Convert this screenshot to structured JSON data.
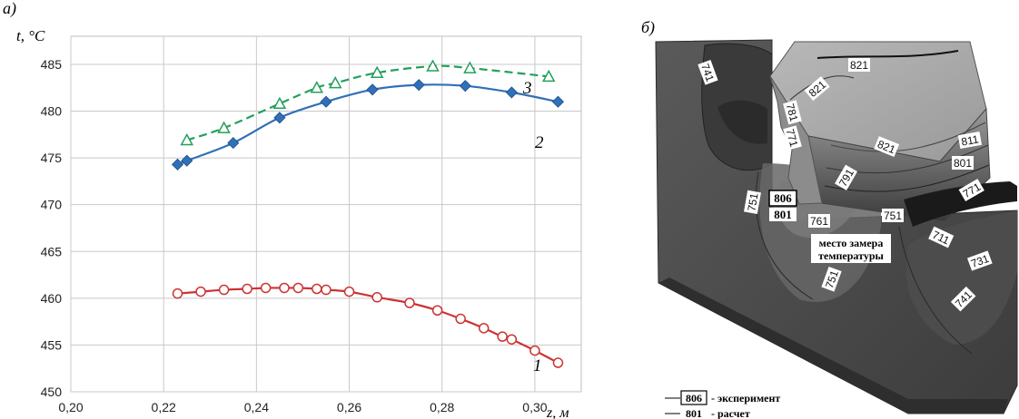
{
  "panel_a": {
    "label": "а)"
  },
  "panel_b": {
    "label": "б)"
  },
  "chart_data": {
    "type": "line",
    "title": "",
    "ylabel": "t, °C",
    "xlabel": "z, м",
    "xlim": [
      0.2,
      0.31
    ],
    "ylim": [
      450,
      488
    ],
    "grid": true,
    "x_ticks": [
      "0,20",
      "0,22",
      "0,24",
      "0,26",
      "0,28",
      "0,30"
    ],
    "y_ticks": [
      "450",
      "455",
      "460",
      "465",
      "470",
      "475",
      "480",
      "485"
    ],
    "series": [
      {
        "name": "1",
        "color": "#cc3333",
        "marker": "circle",
        "line": "solid",
        "x": [
          0.223,
          0.228,
          0.233,
          0.238,
          0.242,
          0.246,
          0.249,
          0.253,
          0.255,
          0.26,
          0.266,
          0.273,
          0.279,
          0.284,
          0.289,
          0.293,
          0.295,
          0.3,
          0.305
        ],
        "y": [
          460.5,
          460.7,
          460.9,
          461.0,
          461.1,
          461.1,
          461.1,
          461.0,
          460.9,
          460.7,
          460.1,
          459.5,
          458.7,
          457.8,
          456.8,
          455.9,
          455.6,
          454.4,
          453.1
        ]
      },
      {
        "name": "2",
        "color": "#3070b8",
        "marker": "diamond",
        "line": "solid",
        "x": [
          0.223,
          0.225,
          0.235,
          0.245,
          0.255,
          0.265,
          0.275,
          0.285,
          0.295,
          0.305
        ],
        "y": [
          474.3,
          474.7,
          476.6,
          479.3,
          481.0,
          482.3,
          482.8,
          482.7,
          482.0,
          481.0
        ]
      },
      {
        "name": "3",
        "color": "#22a05a",
        "marker": "triangle",
        "line": "dashed",
        "x": [
          0.225,
          0.233,
          0.245,
          0.253,
          0.257,
          0.266,
          0.278,
          0.286,
          0.303
        ],
        "y": [
          476.9,
          478.2,
          480.8,
          482.5,
          483.0,
          484.1,
          484.8,
          484.6,
          483.7
        ]
      }
    ]
  },
  "contour_labels": [
    "741",
    "821",
    "821",
    "781",
    "771",
    "821",
    "811",
    "801",
    "791",
    "771",
    "751",
    "761",
    "751",
    "711",
    "731",
    "751",
    "741"
  ],
  "measurement": {
    "experiment_value": "806",
    "calc_value": "801",
    "note_line1": "место замера",
    "note_line2": "температуры"
  },
  "legend_b": {
    "experiment_value": "806",
    "experiment_text": "- эксперимент",
    "calc_value": "801",
    "calc_text": "- расчет"
  }
}
